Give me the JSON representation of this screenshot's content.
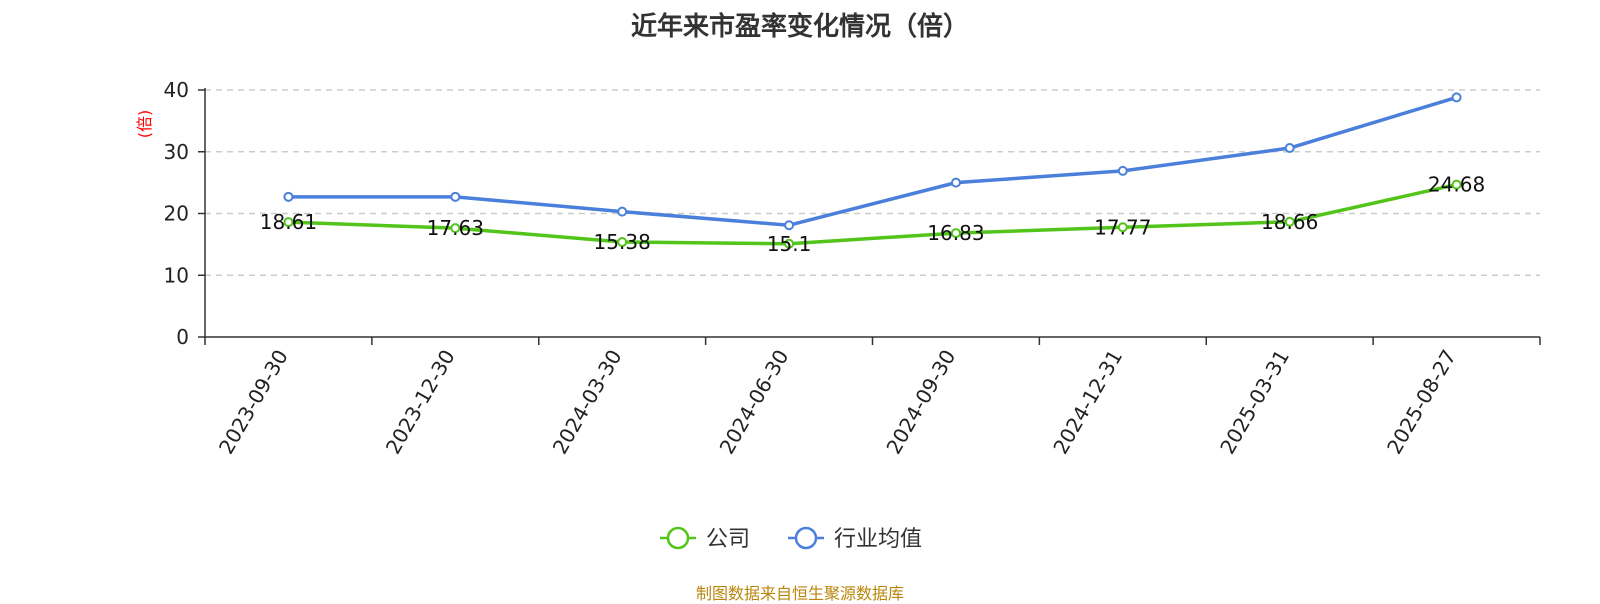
{
  "title": "近年来市盈率变化情况（倍）",
  "source": "制图数据来自恒生聚源数据库",
  "colors": {
    "company": "#52c41a",
    "industry": "#4a7fdb",
    "ylabel": "#ff0000",
    "source": "#b8860b"
  },
  "chart_data": {
    "type": "line",
    "title": "近年来市盈率变化情况（倍）",
    "ylabel": "(倍)",
    "xlabel": "",
    "ylim": [
      0,
      40
    ],
    "yticks": [
      0,
      10,
      20,
      30,
      40
    ],
    "grid": true,
    "legend_position": "bottom-center",
    "categories": [
      "2023-09-30",
      "2023-12-30",
      "2024-03-30",
      "2024-06-30",
      "2024-09-30",
      "2024-12-31",
      "2025-03-31",
      "2025-08-27"
    ],
    "series": [
      {
        "name": "公司",
        "values": [
          18.61,
          17.63,
          15.38,
          15.1,
          16.83,
          17.77,
          18.66,
          24.68
        ],
        "labeled": true
      },
      {
        "name": "行业均值",
        "values": [
          22.7,
          22.7,
          20.3,
          18.1,
          25.0,
          26.9,
          30.6,
          38.8
        ],
        "labeled": false
      }
    ]
  }
}
